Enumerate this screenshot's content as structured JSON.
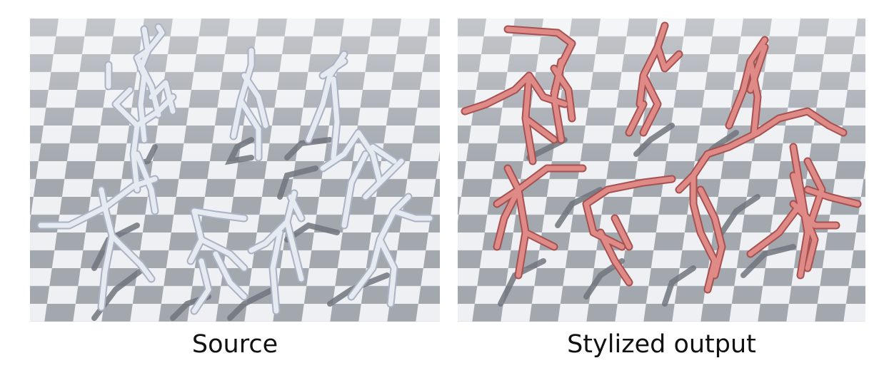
{
  "captions": {
    "source": "Source",
    "stylized": "Stylized output"
  },
  "colors": {
    "floor_light": "#eef0f3",
    "floor_dark": "#9fa4ab",
    "shadow": "#6f747c",
    "source_figure": "#e4e8f0",
    "source_figure_edge": "#a9b2c4",
    "stylized_figure": "#e08a88",
    "stylized_figure_edge": "#a4504f"
  },
  "scene": {
    "floor": "checkerboard",
    "source_figure_count": 12,
    "stylized_figure_count": 10
  }
}
